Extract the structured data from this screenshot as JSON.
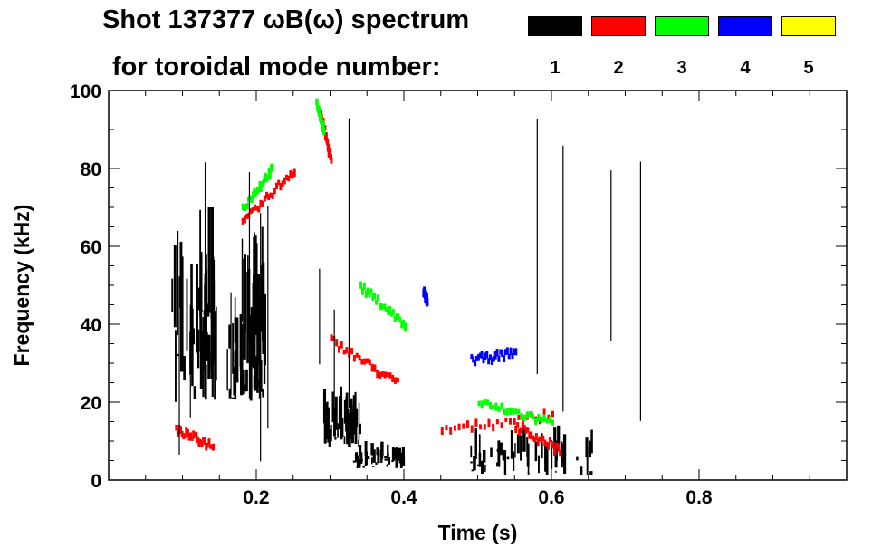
{
  "chart_data": {
    "type": "heatmap",
    "title_line1": "Shot 137377 ωB(ω) spectrum",
    "title_line2": "for toroidal mode number:",
    "xlabel": "Time (s)",
    "ylabel": "Frequency (kHz)",
    "xlim": [
      0.0,
      1.0
    ],
    "ylim": [
      0,
      100
    ],
    "x_ticks": [
      0.2,
      0.4,
      0.6,
      0.8
    ],
    "x_tick_labels": [
      "0.2",
      "0.4",
      "0.6",
      "0.8"
    ],
    "y_ticks": [
      0,
      20,
      40,
      60,
      80,
      100
    ],
    "y_tick_labels": [
      "0",
      "20",
      "40",
      "60",
      "80",
      "100"
    ],
    "legend": [
      {
        "label": "1",
        "color": "#000000"
      },
      {
        "label": "2",
        "color": "#ff0000"
      },
      {
        "label": "3",
        "color": "#00ff00"
      },
      {
        "label": "4",
        "color": "#0000ff"
      },
      {
        "label": "5",
        "color": "#ffff00"
      }
    ],
    "series": [
      {
        "mode": 1,
        "color": "#000000",
        "regions": [
          {
            "type": "blob",
            "t": [
              0.085,
              0.145
            ],
            "f": [
              20,
              70
            ]
          },
          {
            "type": "blob",
            "t": [
              0.16,
              0.21
            ],
            "f": [
              20,
              65
            ]
          },
          {
            "type": "blob",
            "t": [
              0.29,
              0.34
            ],
            "f": [
              8,
              24
            ]
          },
          {
            "type": "blob",
            "t": [
              0.33,
              0.4
            ],
            "f": [
              3,
              10
            ]
          },
          {
            "type": "blob",
            "t": [
              0.49,
              0.66
            ],
            "f": [
              1,
              14
            ]
          }
        ]
      },
      {
        "mode": 2,
        "color": "#ff0000",
        "tracks": [
          {
            "t": [
              0.18,
              0.25
            ],
            "f": [
              66,
              80
            ]
          },
          {
            "t": [
              0.285,
              0.3
            ],
            "f": [
              95,
              82
            ]
          },
          {
            "t": [
              0.3,
              0.39
            ],
            "f": [
              36,
              25
            ]
          },
          {
            "t": [
              0.45,
              0.6
            ],
            "f": [
              13,
              17
            ]
          },
          {
            "t": [
              0.55,
              0.61
            ],
            "f": [
              14,
              8
            ]
          },
          {
            "t": [
              0.09,
              0.14
            ],
            "f": [
              13,
              9
            ]
          }
        ]
      },
      {
        "mode": 3,
        "color": "#00ff00",
        "tracks": [
          {
            "t": [
              0.18,
              0.22
            ],
            "f": [
              70,
              80
            ]
          },
          {
            "t": [
              0.28,
              0.29
            ],
            "f": [
              97,
              90
            ]
          },
          {
            "t": [
              0.34,
              0.4
            ],
            "f": [
              50,
              40
            ]
          },
          {
            "t": [
              0.5,
              0.6
            ],
            "f": [
              20,
              15
            ]
          }
        ]
      },
      {
        "mode": 4,
        "color": "#0000ff",
        "tracks": [
          {
            "t": [
              0.425,
              0.43
            ],
            "f": [
              49,
              46
            ]
          },
          {
            "t": [
              0.49,
              0.55
            ],
            "f": [
              31,
              33
            ]
          }
        ]
      },
      {
        "mode": 5,
        "color": "#ffff00",
        "tracks": []
      }
    ]
  }
}
